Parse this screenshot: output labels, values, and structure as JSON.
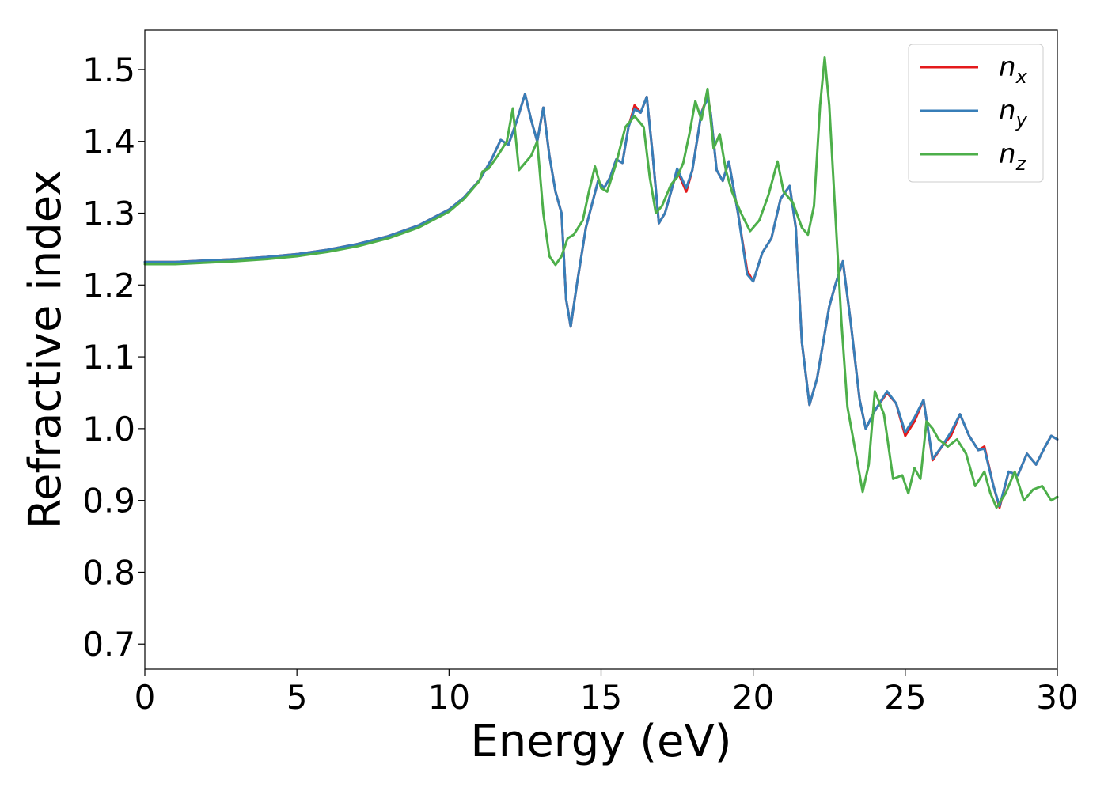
{
  "chart_data": {
    "type": "line",
    "title": "",
    "xlabel": "Energy (eV)",
    "ylabel": "Refractive index",
    "xlim": [
      0,
      30
    ],
    "ylim": [
      0.665,
      1.555
    ],
    "xticks": [
      0,
      5,
      10,
      15,
      20,
      25,
      30
    ],
    "xtick_labels": [
      "0",
      "5",
      "10",
      "15",
      "20",
      "25",
      "30"
    ],
    "yticks": [
      0.7,
      0.8,
      0.9,
      1.0,
      1.1,
      1.2,
      1.3,
      1.4,
      1.5
    ],
    "ytick_labels": [
      "0.7",
      "0.8",
      "0.9",
      "1.0",
      "1.1",
      "1.2",
      "1.3",
      "1.4",
      "1.5"
    ],
    "grid": false,
    "legend_position": "top-right",
    "series": [
      {
        "name": "n_x",
        "legend_base": "n",
        "legend_sub": "x",
        "color": "#e41a1c",
        "points": [
          [
            0,
            1.232
          ],
          [
            1,
            1.232
          ],
          [
            2,
            1.234
          ],
          [
            3,
            1.236
          ],
          [
            4,
            1.239
          ],
          [
            5,
            1.243
          ],
          [
            6,
            1.249
          ],
          [
            7,
            1.257
          ],
          [
            8,
            1.268
          ],
          [
            9,
            1.283
          ],
          [
            10,
            1.305
          ],
          [
            10.5,
            1.322
          ],
          [
            11,
            1.346
          ],
          [
            11.4,
            1.375
          ],
          [
            11.7,
            1.402
          ],
          [
            11.95,
            1.395
          ],
          [
            12.2,
            1.425
          ],
          [
            12.5,
            1.466
          ],
          [
            12.7,
            1.43
          ],
          [
            12.9,
            1.4
          ],
          [
            13.1,
            1.447
          ],
          [
            13.3,
            1.38
          ],
          [
            13.5,
            1.33
          ],
          [
            13.7,
            1.3
          ],
          [
            13.85,
            1.18
          ],
          [
            14.0,
            1.142
          ],
          [
            14.2,
            1.2
          ],
          [
            14.5,
            1.28
          ],
          [
            14.9,
            1.345
          ],
          [
            15.1,
            1.335
          ],
          [
            15.3,
            1.35
          ],
          [
            15.5,
            1.375
          ],
          [
            15.7,
            1.37
          ],
          [
            15.9,
            1.42
          ],
          [
            16.1,
            1.45
          ],
          [
            16.3,
            1.44
          ],
          [
            16.5,
            1.462
          ],
          [
            16.7,
            1.38
          ],
          [
            16.9,
            1.286
          ],
          [
            17.1,
            1.3
          ],
          [
            17.3,
            1.33
          ],
          [
            17.5,
            1.36
          ],
          [
            17.8,
            1.33
          ],
          [
            18.0,
            1.36
          ],
          [
            18.3,
            1.44
          ],
          [
            18.5,
            1.463
          ],
          [
            18.6,
            1.44
          ],
          [
            18.8,
            1.36
          ],
          [
            19.0,
            1.345
          ],
          [
            19.2,
            1.372
          ],
          [
            19.5,
            1.3
          ],
          [
            19.8,
            1.22
          ],
          [
            20.0,
            1.205
          ],
          [
            20.3,
            1.245
          ],
          [
            20.6,
            1.265
          ],
          [
            20.9,
            1.32
          ],
          [
            21.2,
            1.338
          ],
          [
            21.4,
            1.28
          ],
          [
            21.6,
            1.12
          ],
          [
            21.85,
            1.033
          ],
          [
            22.1,
            1.07
          ],
          [
            22.5,
            1.17
          ],
          [
            22.7,
            1.2
          ],
          [
            22.95,
            1.233
          ],
          [
            23.2,
            1.15
          ],
          [
            23.5,
            1.04
          ],
          [
            23.7,
            1.0
          ],
          [
            24.0,
            1.025
          ],
          [
            24.4,
            1.05
          ],
          [
            24.7,
            1.035
          ],
          [
            25.0,
            0.99
          ],
          [
            25.3,
            1.01
          ],
          [
            25.6,
            1.04
          ],
          [
            25.9,
            0.956
          ],
          [
            26.2,
            0.975
          ],
          [
            26.5,
            0.99
          ],
          [
            26.8,
            1.02
          ],
          [
            27.1,
            0.99
          ],
          [
            27.4,
            0.97
          ],
          [
            27.6,
            0.975
          ],
          [
            27.9,
            0.92
          ],
          [
            28.1,
            0.89
          ],
          [
            28.4,
            0.94
          ],
          [
            28.7,
            0.935
          ],
          [
            29.0,
            0.965
          ],
          [
            29.3,
            0.95
          ],
          [
            29.6,
            0.975
          ],
          [
            29.8,
            0.99
          ],
          [
            30,
            0.985
          ]
        ]
      },
      {
        "name": "n_y",
        "legend_base": "n",
        "legend_sub": "y",
        "color": "#377eb8",
        "points": [
          [
            0,
            1.232
          ],
          [
            1,
            1.232
          ],
          [
            2,
            1.234
          ],
          [
            3,
            1.236
          ],
          [
            4,
            1.239
          ],
          [
            5,
            1.243
          ],
          [
            6,
            1.249
          ],
          [
            7,
            1.257
          ],
          [
            8,
            1.268
          ],
          [
            9,
            1.283
          ],
          [
            10,
            1.305
          ],
          [
            10.5,
            1.322
          ],
          [
            11,
            1.346
          ],
          [
            11.4,
            1.375
          ],
          [
            11.7,
            1.402
          ],
          [
            11.95,
            1.395
          ],
          [
            12.2,
            1.425
          ],
          [
            12.5,
            1.466
          ],
          [
            12.7,
            1.43
          ],
          [
            12.9,
            1.4
          ],
          [
            13.1,
            1.447
          ],
          [
            13.3,
            1.38
          ],
          [
            13.5,
            1.33
          ],
          [
            13.7,
            1.3
          ],
          [
            13.85,
            1.18
          ],
          [
            14.0,
            1.142
          ],
          [
            14.2,
            1.2
          ],
          [
            14.5,
            1.28
          ],
          [
            14.9,
            1.345
          ],
          [
            15.1,
            1.335
          ],
          [
            15.3,
            1.35
          ],
          [
            15.5,
            1.375
          ],
          [
            15.7,
            1.37
          ],
          [
            15.9,
            1.42
          ],
          [
            16.1,
            1.445
          ],
          [
            16.3,
            1.44
          ],
          [
            16.5,
            1.462
          ],
          [
            16.7,
            1.38
          ],
          [
            16.9,
            1.286
          ],
          [
            17.1,
            1.3
          ],
          [
            17.3,
            1.33
          ],
          [
            17.5,
            1.362
          ],
          [
            17.8,
            1.335
          ],
          [
            18.0,
            1.36
          ],
          [
            18.3,
            1.44
          ],
          [
            18.5,
            1.46
          ],
          [
            18.6,
            1.44
          ],
          [
            18.8,
            1.36
          ],
          [
            19.0,
            1.345
          ],
          [
            19.2,
            1.372
          ],
          [
            19.5,
            1.3
          ],
          [
            19.8,
            1.215
          ],
          [
            20.0,
            1.205
          ],
          [
            20.3,
            1.245
          ],
          [
            20.6,
            1.265
          ],
          [
            20.9,
            1.32
          ],
          [
            21.2,
            1.338
          ],
          [
            21.4,
            1.28
          ],
          [
            21.6,
            1.12
          ],
          [
            21.85,
            1.033
          ],
          [
            22.1,
            1.07
          ],
          [
            22.5,
            1.17
          ],
          [
            22.7,
            1.2
          ],
          [
            22.95,
            1.233
          ],
          [
            23.2,
            1.15
          ],
          [
            23.5,
            1.04
          ],
          [
            23.7,
            1.0
          ],
          [
            24.0,
            1.025
          ],
          [
            24.4,
            1.052
          ],
          [
            24.7,
            1.035
          ],
          [
            25.0,
            0.995
          ],
          [
            25.3,
            1.015
          ],
          [
            25.6,
            1.04
          ],
          [
            25.9,
            0.958
          ],
          [
            26.2,
            0.975
          ],
          [
            26.5,
            0.995
          ],
          [
            26.8,
            1.02
          ],
          [
            27.1,
            0.99
          ],
          [
            27.4,
            0.97
          ],
          [
            27.6,
            0.972
          ],
          [
            27.9,
            0.92
          ],
          [
            28.1,
            0.892
          ],
          [
            28.4,
            0.94
          ],
          [
            28.7,
            0.935
          ],
          [
            29.0,
            0.965
          ],
          [
            29.3,
            0.95
          ],
          [
            29.6,
            0.975
          ],
          [
            29.8,
            0.99
          ],
          [
            30,
            0.985
          ]
        ]
      },
      {
        "name": "n_z",
        "legend_base": "n",
        "legend_sub": "z",
        "color": "#4daf4a",
        "points": [
          [
            0,
            1.229
          ],
          [
            1,
            1.229
          ],
          [
            2,
            1.231
          ],
          [
            3,
            1.233
          ],
          [
            4,
            1.236
          ],
          [
            5,
            1.24
          ],
          [
            6,
            1.246
          ],
          [
            7,
            1.254
          ],
          [
            8,
            1.265
          ],
          [
            9,
            1.28
          ],
          [
            10,
            1.302
          ],
          [
            10.5,
            1.32
          ],
          [
            11,
            1.345
          ],
          [
            11.1,
            1.358
          ],
          [
            11.3,
            1.362
          ],
          [
            11.6,
            1.38
          ],
          [
            11.9,
            1.4
          ],
          [
            12.1,
            1.446
          ],
          [
            12.3,
            1.36
          ],
          [
            12.5,
            1.37
          ],
          [
            12.7,
            1.38
          ],
          [
            12.9,
            1.4
          ],
          [
            13.1,
            1.3
          ],
          [
            13.3,
            1.24
          ],
          [
            13.5,
            1.228
          ],
          [
            13.7,
            1.24
          ],
          [
            13.9,
            1.265
          ],
          [
            14.1,
            1.27
          ],
          [
            14.4,
            1.29
          ],
          [
            14.6,
            1.33
          ],
          [
            14.8,
            1.365
          ],
          [
            15.0,
            1.335
          ],
          [
            15.2,
            1.33
          ],
          [
            15.5,
            1.37
          ],
          [
            15.8,
            1.42
          ],
          [
            16.1,
            1.435
          ],
          [
            16.4,
            1.42
          ],
          [
            16.6,
            1.35
          ],
          [
            16.8,
            1.3
          ],
          [
            17.0,
            1.31
          ],
          [
            17.3,
            1.34
          ],
          [
            17.5,
            1.35
          ],
          [
            17.7,
            1.37
          ],
          [
            17.9,
            1.41
          ],
          [
            18.1,
            1.456
          ],
          [
            18.3,
            1.43
          ],
          [
            18.5,
            1.473
          ],
          [
            18.7,
            1.39
          ],
          [
            18.9,
            1.41
          ],
          [
            19.1,
            1.36
          ],
          [
            19.3,
            1.33
          ],
          [
            19.6,
            1.3
          ],
          [
            19.9,
            1.275
          ],
          [
            20.2,
            1.29
          ],
          [
            20.5,
            1.325
          ],
          [
            20.8,
            1.372
          ],
          [
            21.0,
            1.33
          ],
          [
            21.3,
            1.315
          ],
          [
            21.6,
            1.28
          ],
          [
            21.8,
            1.27
          ],
          [
            22.0,
            1.31
          ],
          [
            22.2,
            1.45
          ],
          [
            22.35,
            1.517
          ],
          [
            22.5,
            1.45
          ],
          [
            22.7,
            1.3
          ],
          [
            22.9,
            1.15
          ],
          [
            23.1,
            1.03
          ],
          [
            23.4,
            0.96
          ],
          [
            23.6,
            0.912
          ],
          [
            23.8,
            0.95
          ],
          [
            24.0,
            1.052
          ],
          [
            24.3,
            1.02
          ],
          [
            24.6,
            0.93
          ],
          [
            24.9,
            0.935
          ],
          [
            25.1,
            0.91
          ],
          [
            25.3,
            0.945
          ],
          [
            25.5,
            0.93
          ],
          [
            25.7,
            1.01
          ],
          [
            25.9,
            1.0
          ],
          [
            26.1,
            0.985
          ],
          [
            26.4,
            0.975
          ],
          [
            26.7,
            0.985
          ],
          [
            27.0,
            0.965
          ],
          [
            27.3,
            0.92
          ],
          [
            27.6,
            0.94
          ],
          [
            27.8,
            0.91
          ],
          [
            28.0,
            0.89
          ],
          [
            28.3,
            0.91
          ],
          [
            28.6,
            0.94
          ],
          [
            28.9,
            0.9
          ],
          [
            29.2,
            0.915
          ],
          [
            29.5,
            0.92
          ],
          [
            29.8,
            0.9
          ],
          [
            30,
            0.905
          ]
        ]
      }
    ]
  }
}
